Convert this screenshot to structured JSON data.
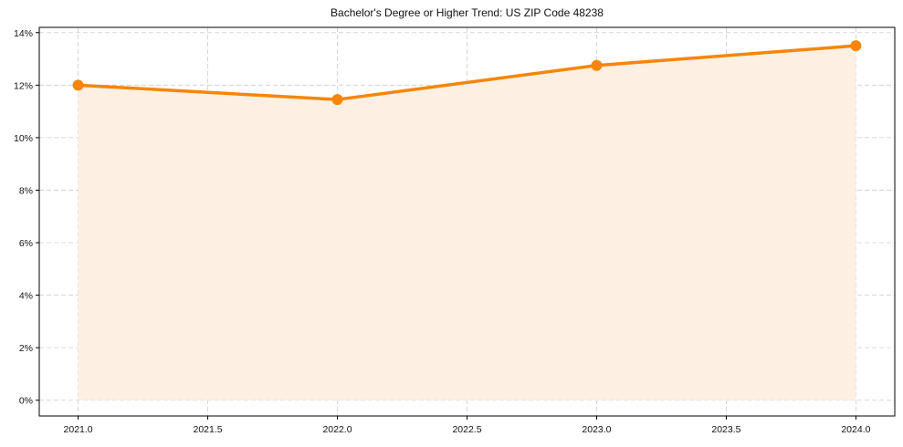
{
  "chart_data": {
    "type": "line",
    "title": "Bachelor's Degree or Higher Trend: US ZIP Code 48238",
    "xlabel": "",
    "ylabel": "",
    "x": [
      2021,
      2022,
      2023,
      2024
    ],
    "series": [
      {
        "name": "Bachelor's Degree or Higher",
        "values": [
          12.0,
          11.45,
          12.75,
          13.5
        ],
        "unit": "%",
        "color": "#f5860a",
        "fill_color": "#fdf0e2",
        "marker": "circle"
      }
    ],
    "xlim": [
      2020.85,
      2024.15
    ],
    "ylim": [
      -0.6,
      14.2
    ],
    "x_ticks": [
      "2021.0",
      "2021.5",
      "2022.0",
      "2022.5",
      "2023.0",
      "2023.5",
      "2024.0"
    ],
    "y_ticks": [
      "0%",
      "2%",
      "4%",
      "6%",
      "8%",
      "10%",
      "12%",
      "14%"
    ],
    "grid": true,
    "grid_style": "dashed",
    "legend": "none",
    "area_fill": true
  },
  "colors": {
    "line": "#f5860a",
    "fill": "#fdf0e2",
    "grid": "#cccccc",
    "axis": "#000000"
  }
}
